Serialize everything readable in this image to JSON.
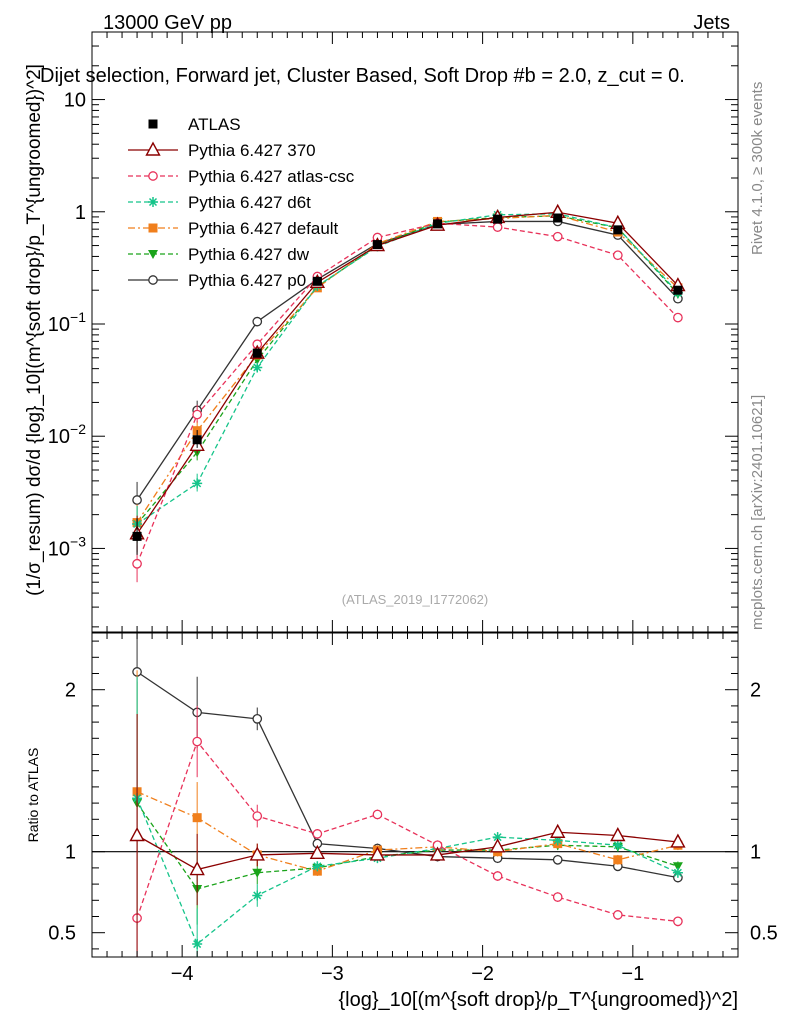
{
  "header": {
    "left": "13000 GeV pp",
    "right": "Jets",
    "title": "Dijet selection, Forward jet, Cluster Based, Soft Drop #b = 2.0, z_cut = 0.",
    "watermark": "(ATLAS_2019_I1772062)"
  },
  "side": {
    "rivet": "Rivet 4.1.0, ≥ 300k events",
    "mcplots": "mcplots.cern.ch [arXiv:2401.10621]"
  },
  "axes": {
    "ylabel_main": "(1/σ_resum) dσ/d {log}_10[(m^{soft drop}/p_T^{ungroomed})^2]",
    "ylabel_ratio": "Ratio to ATLAS",
    "xlabel": "{log}_10[(m^{soft drop}/p_T^{ungroomed})^2]"
  },
  "colors": {
    "atlas": "#000000",
    "p370": "#8b0000",
    "atlas_csc": "#e8325a",
    "d6t": "#15c48a",
    "default": "#f07f1c",
    "dw": "#1aa31a",
    "p0": "#333333"
  },
  "chart_data": {
    "type": "line",
    "x": [
      -4.3,
      -3.9,
      -3.5,
      -3.1,
      -2.7,
      -2.3,
      -1.9,
      -1.5,
      -1.1,
      -0.7
    ],
    "xlim": [
      -4.6,
      -0.3
    ],
    "xticks": [
      -4,
      -3,
      -2,
      -1
    ],
    "xtick_labels": [
      "−4",
      "−3",
      "−2",
      "−1"
    ],
    "main": {
      "yscale": "log",
      "ylim": [
        0.00018,
        40
      ],
      "yticks": [
        0.001,
        0.01,
        0.1,
        1,
        10
      ],
      "ytick_labels": [
        "10^-3",
        "10^-2",
        "10^-1",
        "1",
        "10"
      ]
    },
    "ratio": {
      "ylim": [
        0.35,
        2.35
      ],
      "yticks": [
        0.5,
        1,
        2
      ],
      "ytick_labels": [
        "0.5",
        "1",
        "2"
      ]
    },
    "series": [
      {
        "name": "ATLAS",
        "key": "atlas",
        "values": [
          0.00128,
          0.0093,
          0.055,
          0.24,
          0.51,
          0.78,
          0.86,
          0.88,
          0.69,
          0.2
        ]
      },
      {
        "name": "Pythia 6.427 370",
        "key": "p370",
        "values": [
          0.00135,
          0.0083,
          0.055,
          0.235,
          0.5,
          0.76,
          0.89,
          0.99,
          0.79,
          0.22
        ],
        "ratio": [
          1.1,
          0.89,
          0.98,
          0.99,
          0.98,
          0.98,
          1.03,
          1.12,
          1.1,
          1.06
        ]
      },
      {
        "name": "Pythia 6.427 atlas-csc",
        "key": "atlas_csc",
        "values": [
          0.00073,
          0.0156,
          0.066,
          0.265,
          0.59,
          0.79,
          0.73,
          0.6,
          0.41,
          0.114
        ],
        "ratio": [
          0.59,
          1.68,
          1.22,
          1.11,
          1.23,
          1.04,
          0.85,
          0.72,
          0.61,
          0.57
        ]
      },
      {
        "name": "Pythia 6.427 d6t",
        "key": "d6t",
        "values": [
          0.00165,
          0.0038,
          0.041,
          0.218,
          0.49,
          0.79,
          0.94,
          0.96,
          0.72,
          0.19
        ],
        "ratio": [
          1.33,
          0.43,
          0.73,
          0.91,
          0.96,
          1.02,
          1.09,
          1.07,
          1.04,
          0.87
        ]
      },
      {
        "name": "Pythia 6.427 default",
        "key": "default",
        "values": [
          0.0017,
          0.0112,
          0.053,
          0.21,
          0.52,
          0.82,
          0.87,
          0.93,
          0.66,
          0.21
        ],
        "ratio": [
          1.37,
          1.21,
          0.98,
          0.88,
          1.01,
          1.03,
          1.0,
          1.05,
          0.95,
          1.04
        ]
      },
      {
        "name": "Pythia 6.427 dw",
        "key": "dw",
        "values": [
          0.00165,
          0.0072,
          0.048,
          0.215,
          0.5,
          0.81,
          0.89,
          0.92,
          0.72,
          0.185
        ],
        "ratio": [
          1.3,
          0.77,
          0.87,
          0.9,
          0.97,
          1.01,
          1.01,
          1.04,
          1.03,
          0.91
        ]
      },
      {
        "name": "Pythia 6.427 p0",
        "key": "p0",
        "values": [
          0.0027,
          0.017,
          0.105,
          0.25,
          0.52,
          0.77,
          0.82,
          0.82,
          0.62,
          0.168
        ],
        "ratio": [
          2.11,
          1.86,
          1.82,
          1.05,
          1.02,
          0.97,
          0.96,
          0.95,
          0.91,
          0.84
        ]
      }
    ],
    "legend_position": "top-left"
  }
}
